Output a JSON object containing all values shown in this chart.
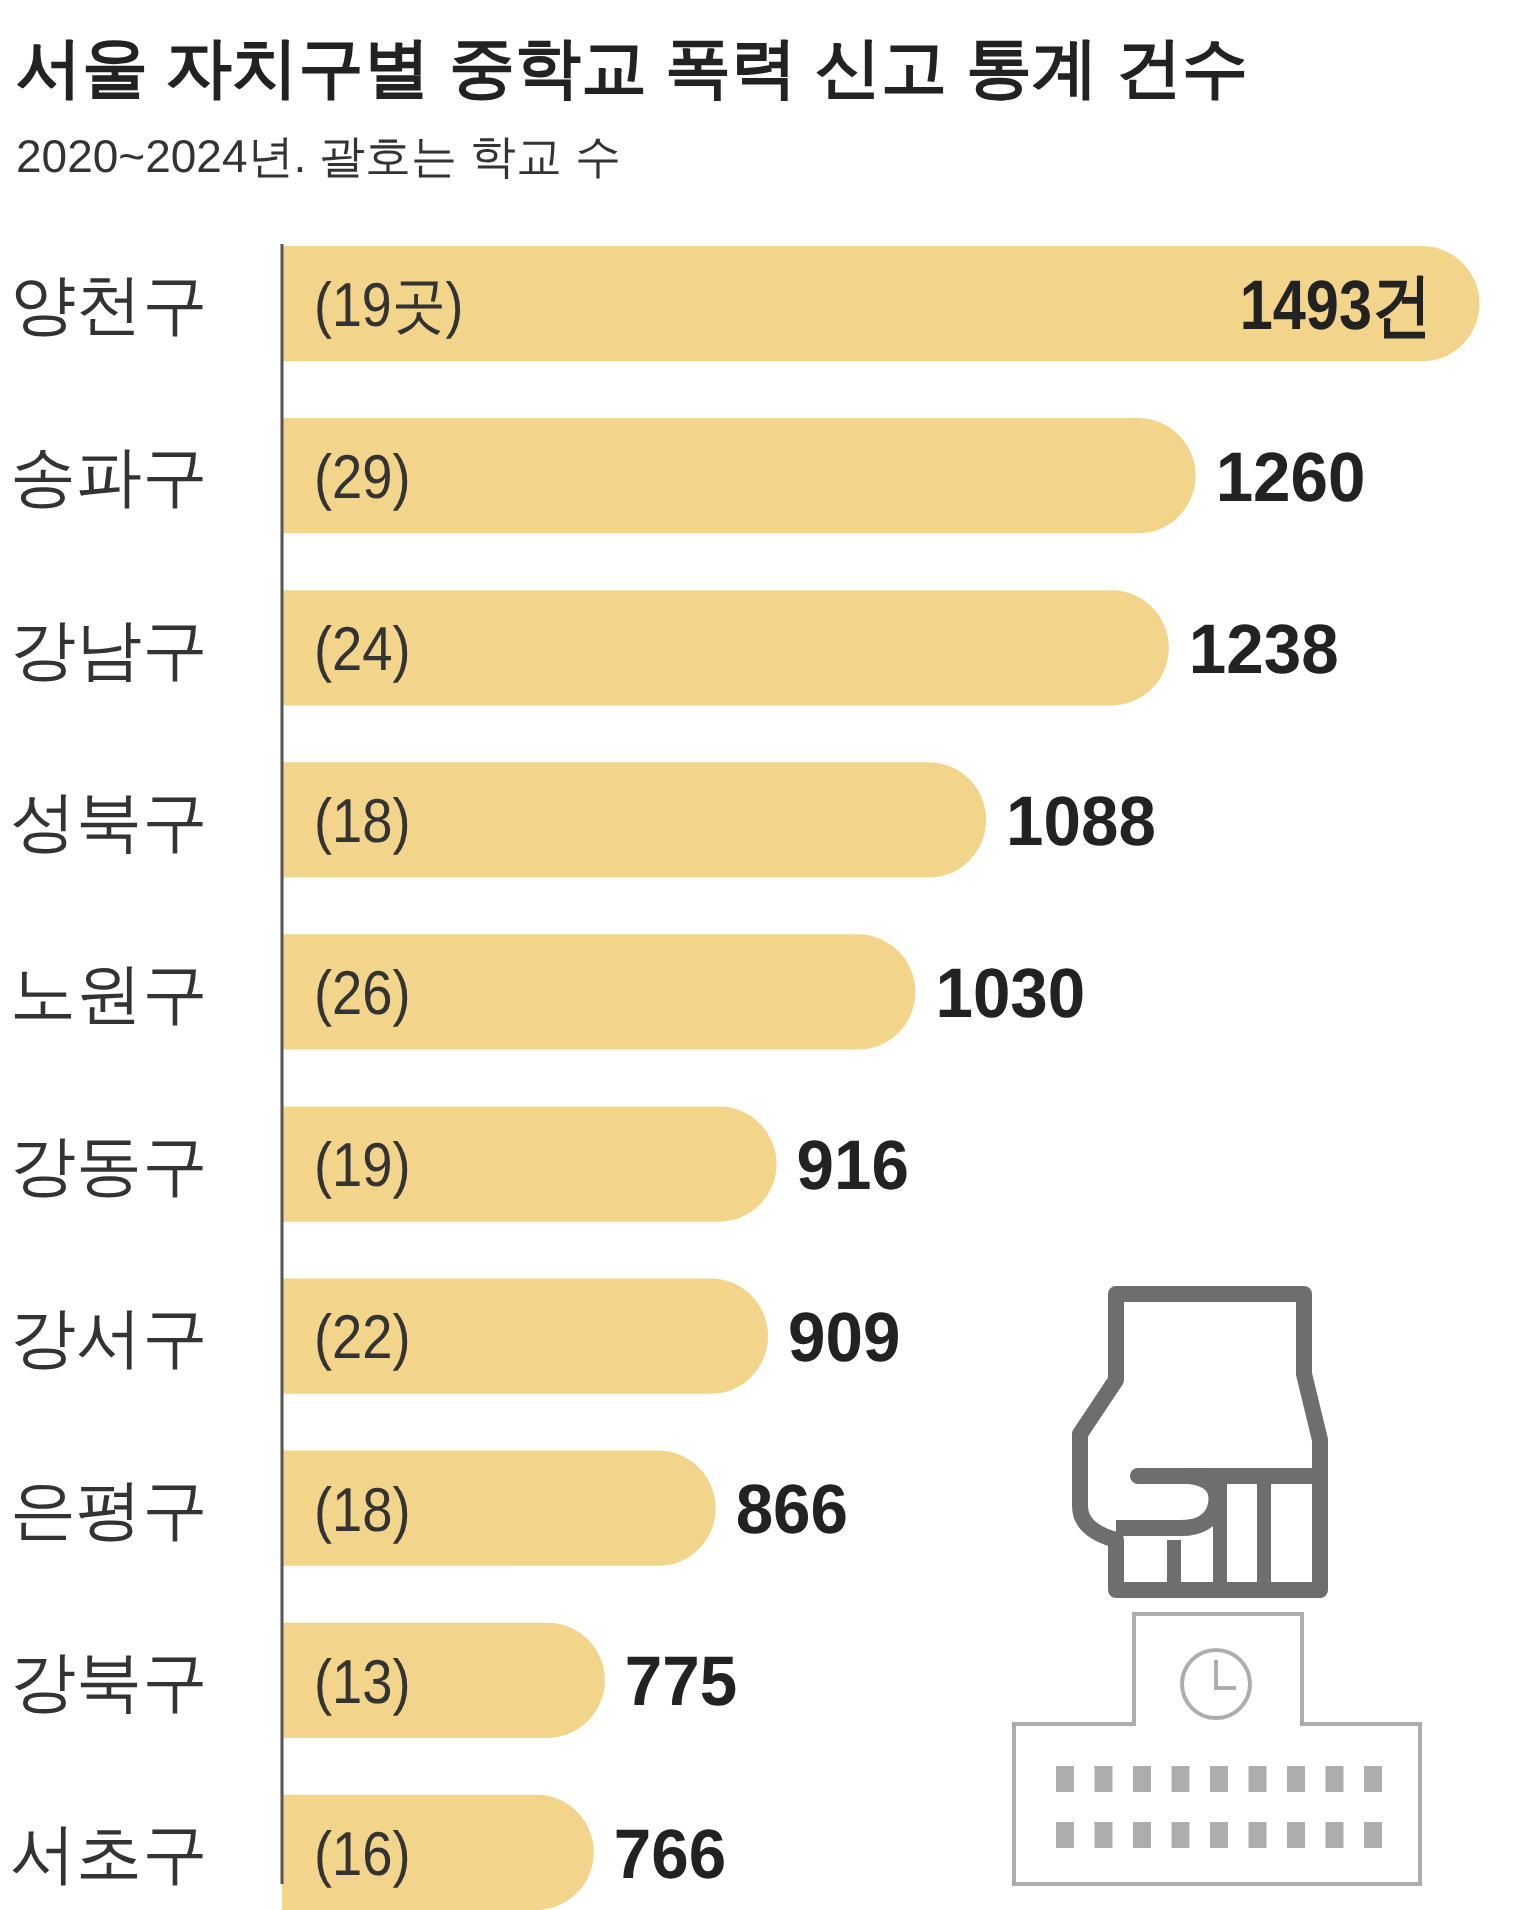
{
  "chart_data": {
    "type": "bar",
    "orientation": "horizontal",
    "title": "서울 자치구별 중학교 폭력 신고 통계 건수",
    "subtitle": "2020~2024년. 괄호는 학교 수",
    "categories": [
      "양천구",
      "송파구",
      "강남구",
      "성북구",
      "노원구",
      "강동구",
      "강서구",
      "은평구",
      "강북구",
      "서초구"
    ],
    "values": [
      1493,
      1260,
      1238,
      1088,
      1030,
      916,
      909,
      866,
      775,
      766
    ],
    "value_labels": [
      "1493건",
      "1260",
      "1238",
      "1088",
      "1030",
      "916",
      "909",
      "866",
      "775",
      "766"
    ],
    "color": "#f2d58b",
    "xlim": [
      510,
      1500
    ],
    "tick_labels": "y",
    "annotations": [
      "(19곳)",
      "(29)",
      "(24)",
      "(18)",
      "(26)",
      "(19)",
      "(22)",
      "(18)",
      "(13)",
      "(16)"
    ]
  }
}
